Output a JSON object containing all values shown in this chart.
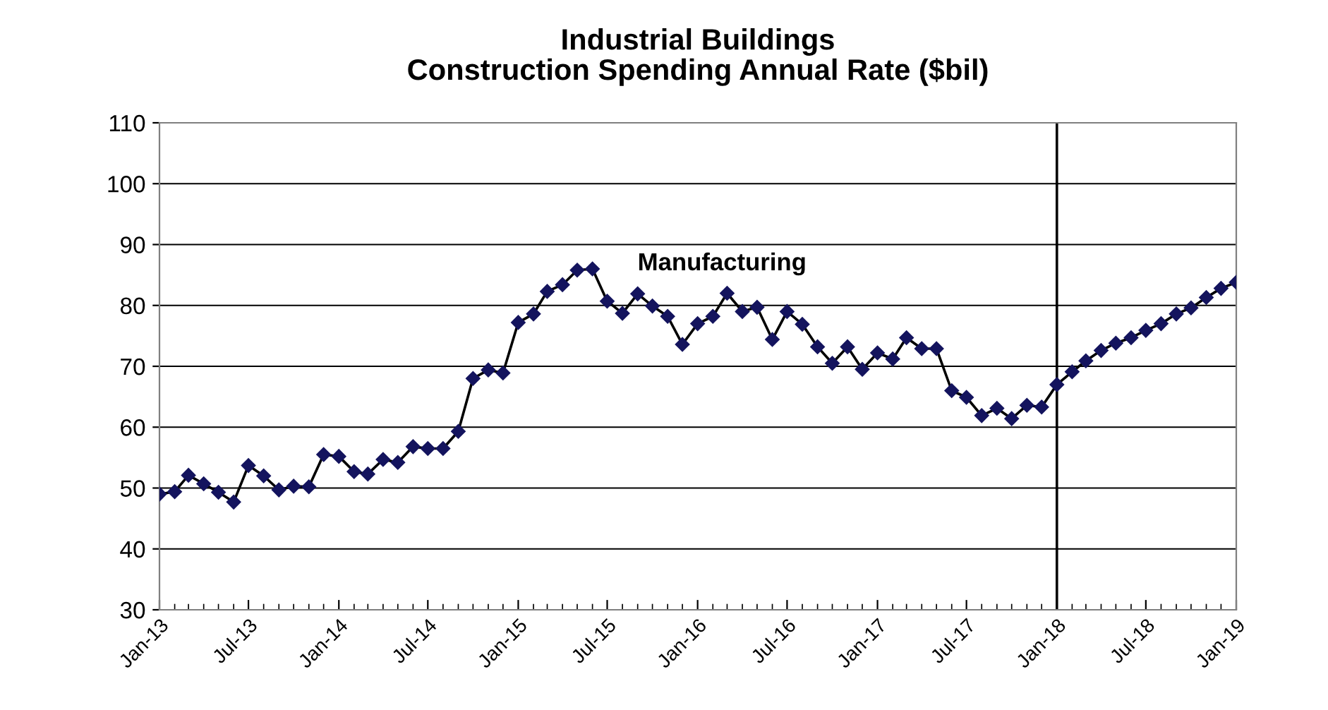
{
  "chart_data": {
    "type": "line",
    "title": "Industrial Buildings\nConstruction Spending Annual Rate ($bil)",
    "x": [
      "2013-01",
      "2013-02",
      "2013-03",
      "2013-04",
      "2013-05",
      "2013-06",
      "2013-07",
      "2013-08",
      "2013-09",
      "2013-10",
      "2013-11",
      "2013-12",
      "2014-01",
      "2014-02",
      "2014-03",
      "2014-04",
      "2014-05",
      "2014-06",
      "2014-07",
      "2014-08",
      "2014-09",
      "2014-10",
      "2014-11",
      "2014-12",
      "2015-01",
      "2015-02",
      "2015-03",
      "2015-04",
      "2015-05",
      "2015-06",
      "2015-07",
      "2015-08",
      "2015-09",
      "2015-10",
      "2015-11",
      "2015-12",
      "2016-01",
      "2016-02",
      "2016-03",
      "2016-04",
      "2016-05",
      "2016-06",
      "2016-07",
      "2016-08",
      "2016-09",
      "2016-10",
      "2016-11",
      "2016-12",
      "2017-01",
      "2017-02",
      "2017-03",
      "2017-04",
      "2017-05",
      "2017-06",
      "2017-07",
      "2017-08",
      "2017-09",
      "2017-10",
      "2017-11",
      "2017-12",
      "2018-01",
      "2018-02",
      "2018-03",
      "2018-04",
      "2018-05",
      "2018-06",
      "2018-07",
      "2018-08",
      "2018-09",
      "2018-10",
      "2018-11",
      "2018-12",
      "2019-01"
    ],
    "series": [
      {
        "name": "Manufacturing",
        "color": "#14145e",
        "values": [
          49.0,
          49.4,
          52.1,
          50.7,
          49.3,
          47.7,
          53.7,
          52.0,
          49.7,
          50.3,
          50.2,
          55.5,
          55.2,
          52.7,
          52.3,
          54.7,
          54.2,
          56.8,
          56.5,
          56.5,
          59.3,
          68.0,
          69.4,
          68.9,
          77.2,
          78.6,
          82.3,
          83.4,
          85.8,
          86.0,
          80.7,
          78.7,
          81.9,
          79.9,
          78.2,
          73.6,
          77.0,
          78.2,
          82.0,
          79.0,
          79.7,
          74.4,
          79.0,
          76.9,
          73.2,
          70.5,
          73.2,
          69.5,
          72.2,
          71.2,
          74.7,
          72.9,
          72.9,
          66.0,
          64.9,
          61.9,
          63.1,
          61.4,
          63.6,
          63.3,
          67.0,
          69.1,
          70.9,
          72.6,
          73.8,
          74.7,
          75.9,
          77.0,
          78.6,
          79.6,
          81.3,
          82.8,
          83.8
        ]
      }
    ],
    "xlim": [
      "2013-01",
      "2019-01"
    ],
    "xticks": [
      {
        "value": "2013-01",
        "label": "Jan-13"
      },
      {
        "value": "2013-07",
        "label": "Jul-13"
      },
      {
        "value": "2014-01",
        "label": "Jan-14"
      },
      {
        "value": "2014-07",
        "label": "Jul-14"
      },
      {
        "value": "2015-01",
        "label": "Jan-15"
      },
      {
        "value": "2015-07",
        "label": "Jul-15"
      },
      {
        "value": "2016-01",
        "label": "Jan-16"
      },
      {
        "value": "2016-07",
        "label": "Jul-16"
      },
      {
        "value": "2017-01",
        "label": "Jan-17"
      },
      {
        "value": "2017-07",
        "label": "Jul-17"
      },
      {
        "value": "2018-01",
        "label": "Jan-18"
      },
      {
        "value": "2018-07",
        "label": "Jul-18"
      },
      {
        "value": "2019-01",
        "label": "Jan-19"
      }
    ],
    "ylim": [
      30,
      110
    ],
    "yticks": [
      30,
      40,
      50,
      60,
      70,
      80,
      90,
      100,
      110
    ],
    "ref_lines": [
      {
        "axis": "x",
        "value": "2018-01",
        "color": "#000000"
      }
    ],
    "grid": "y",
    "marker": "diamond",
    "line_style": "solid",
    "legend": false
  }
}
